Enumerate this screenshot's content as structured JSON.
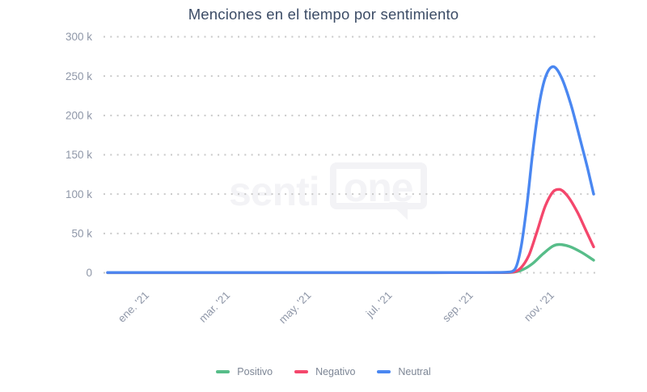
{
  "title": "Menciones en el tiempo por sentimiento",
  "watermark": {
    "text_left": "senti",
    "text_bubble": "one"
  },
  "colors": {
    "positive": "#57bd89",
    "negative": "#f4476c",
    "neutral": "#4a87f1",
    "title_text": "#3c4c66",
    "axis_label": "#8f97a8",
    "gridline": "#c9c9c9",
    "legend_text": "#7d8695",
    "watermark": "#f3f3f6"
  },
  "legend": {
    "items": [
      {
        "label": "Positivo",
        "color": "#57bd89"
      },
      {
        "label": "Negativo",
        "color": "#f4476c"
      },
      {
        "label": "Neutral",
        "color": "#4a87f1"
      }
    ]
  },
  "chart_data": {
    "type": "line",
    "title": "Menciones en el tiempo por sentimiento",
    "x_unit": "months since 2020-12-01",
    "xlim": [
      0,
      12
    ],
    "ylim": [
      0,
      300000
    ],
    "grid": "horizontal-dotted",
    "legend_position": "bottom-center",
    "y_ticks": [
      {
        "value": 0,
        "label": "0"
      },
      {
        "value": 50000,
        "label": "50 k"
      },
      {
        "value": 100000,
        "label": "100 k"
      },
      {
        "value": 150000,
        "label": "150 k"
      },
      {
        "value": 200000,
        "label": "200 k"
      },
      {
        "value": 250000,
        "label": "250 k"
      },
      {
        "value": 300000,
        "label": "300 k"
      }
    ],
    "x_ticks": [
      {
        "m": 1,
        "label": "ene. '21"
      },
      {
        "m": 3,
        "label": "mar. '21"
      },
      {
        "m": 5,
        "label": "may. '21"
      },
      {
        "m": 7,
        "label": "jul. '21"
      },
      {
        "m": 9,
        "label": "sep. '21"
      },
      {
        "m": 11,
        "label": "nov. '21"
      }
    ],
    "series": [
      {
        "name": "Positivo",
        "color": "#57bd89",
        "peak": 36000,
        "points": [
          [
            0,
            150
          ],
          [
            2,
            150
          ],
          [
            4,
            150
          ],
          [
            6,
            150
          ],
          [
            8,
            150
          ],
          [
            9,
            200
          ],
          [
            9.7,
            250
          ],
          [
            10.0,
            600
          ],
          [
            10.25,
            4000
          ],
          [
            10.5,
            12000
          ],
          [
            10.75,
            24000
          ],
          [
            11.0,
            34000
          ],
          [
            11.15,
            36000
          ],
          [
            11.4,
            33500
          ],
          [
            11.7,
            26000
          ],
          [
            12,
            16000
          ]
        ]
      },
      {
        "name": "Negativo",
        "color": "#f4476c",
        "peak": 106000,
        "points": [
          [
            0,
            200
          ],
          [
            2,
            200
          ],
          [
            4,
            200
          ],
          [
            6,
            200
          ],
          [
            8,
            200
          ],
          [
            9,
            250
          ],
          [
            9.7,
            300
          ],
          [
            10.0,
            800
          ],
          [
            10.2,
            6000
          ],
          [
            10.4,
            22000
          ],
          [
            10.6,
            52000
          ],
          [
            10.8,
            84000
          ],
          [
            11.0,
            103000
          ],
          [
            11.15,
            106000
          ],
          [
            11.35,
            98000
          ],
          [
            11.6,
            77000
          ],
          [
            11.8,
            55000
          ],
          [
            12,
            33000
          ]
        ]
      },
      {
        "name": "Neutral",
        "color": "#4a87f1",
        "peak": 262000,
        "points": [
          [
            0,
            300
          ],
          [
            2,
            300
          ],
          [
            4,
            300
          ],
          [
            6,
            300
          ],
          [
            8,
            300
          ],
          [
            9,
            350
          ],
          [
            9.6,
            400
          ],
          [
            9.9,
            900
          ],
          [
            10.05,
            4000
          ],
          [
            10.2,
            30000
          ],
          [
            10.35,
            85000
          ],
          [
            10.5,
            155000
          ],
          [
            10.65,
            212000
          ],
          [
            10.8,
            247000
          ],
          [
            11.0,
            262000
          ],
          [
            11.2,
            249000
          ],
          [
            11.45,
            212000
          ],
          [
            11.7,
            163000
          ],
          [
            11.85,
            133000
          ],
          [
            12,
            100000
          ]
        ]
      }
    ]
  }
}
